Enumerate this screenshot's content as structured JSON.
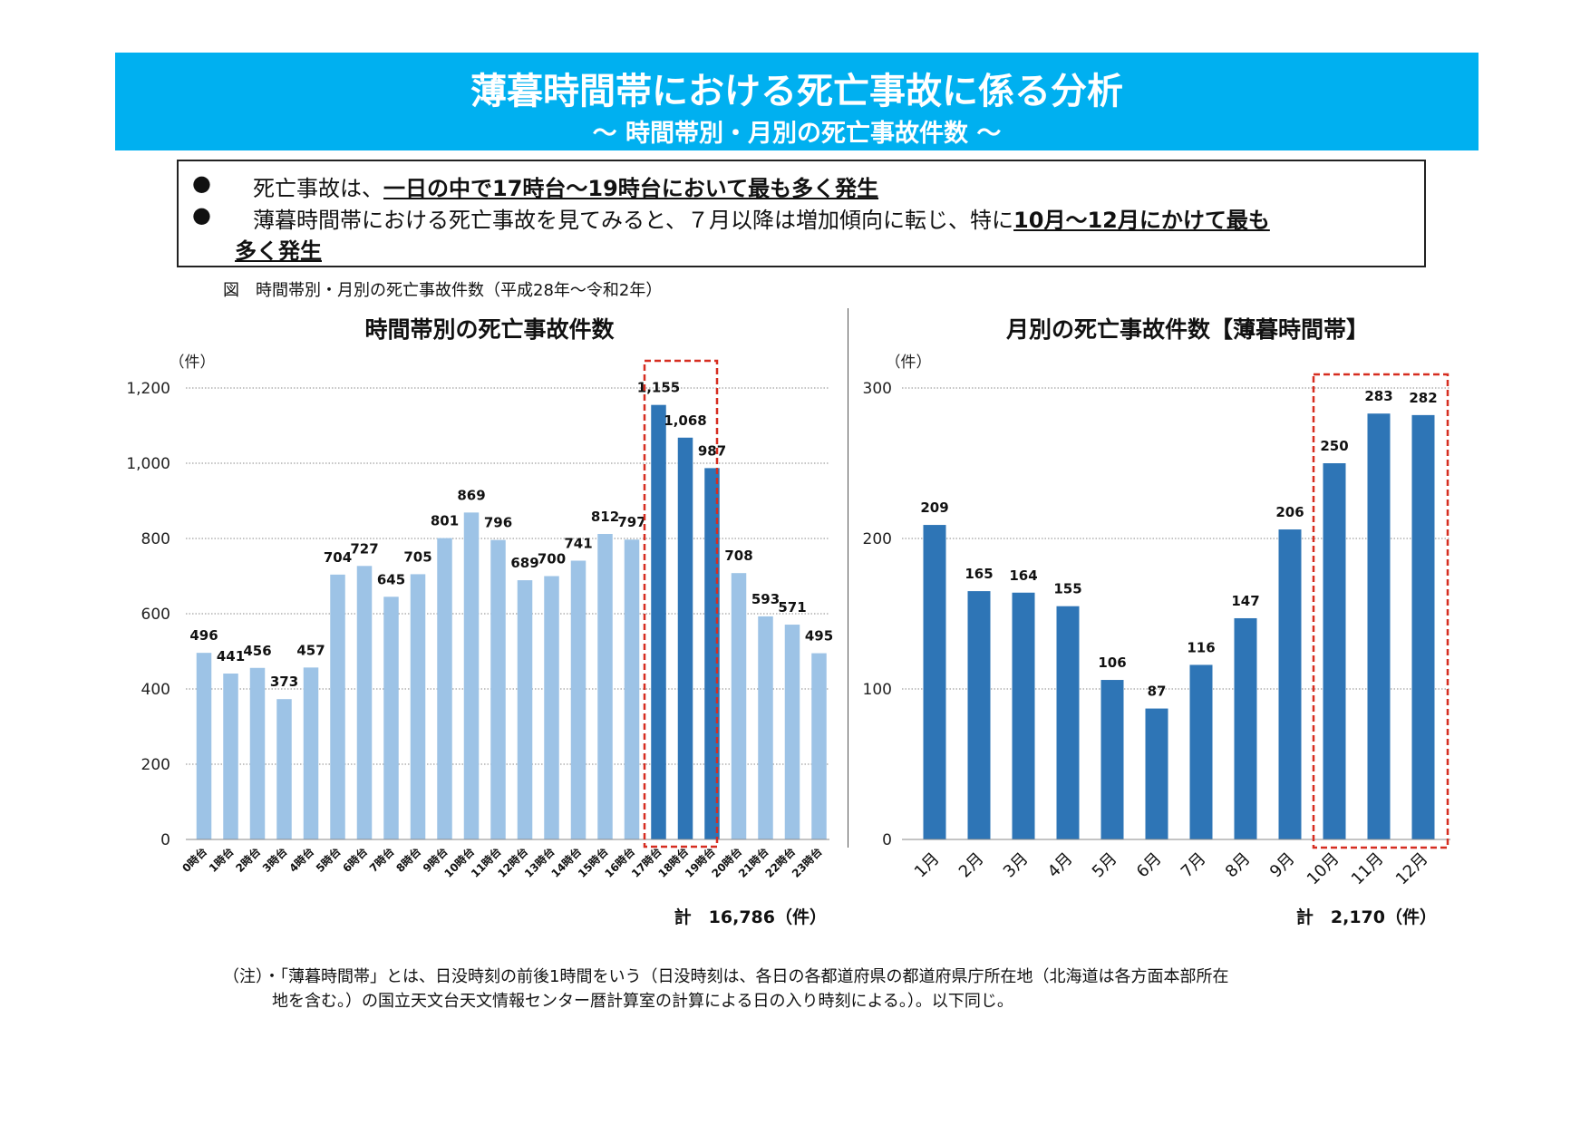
{
  "header": {
    "title": "薄暮時間帯における死亡事故に係る分析",
    "subtitle": "～ 時間帯別・月別の死亡事故件数 ～"
  },
  "summary": {
    "bullet_symbol": "●",
    "line1_pre": "死亡事故は、",
    "line1_em": "一日の中で17時台～19時台において最も多く発生",
    "line2_pre": "薄暮時間帯における死亡事故を見てみると、７月以降は増加傾向に転じ、特に",
    "line2_em": "10月～12月にかけて最も",
    "line3_em": "多く発生"
  },
  "figure_caption": "図　時間帯別・月別の死亡事故件数（平成28年～令和2年）",
  "note": {
    "line1": "（注）・「薄暮時間帯」とは、日没時刻の前後1時間をいう（日没時刻は、各日の各都道府県の都道府県庁所在地（北海道は各方面本部所在",
    "line2": "地を含む。）の国立天文台天文情報センター暦計算室の計算による日の入り時刻による。）。以下同じ。"
  },
  "colors": {
    "banner": "#00b0f0",
    "light_bar": "#9dc3e6",
    "dark_bar": "#2e75b6",
    "highlight_box": "#d62d20"
  },
  "chart_data": [
    {
      "type": "bar",
      "title": "時間帯別の死亡事故件数",
      "ylabel": "（件）",
      "ylim": [
        0,
        1200
      ],
      "yticks": [
        0,
        200,
        400,
        600,
        800,
        1000,
        1200
      ],
      "ytick_labels": [
        "0",
        "200",
        "400",
        "600",
        "800",
        "1,000",
        "1,200"
      ],
      "categories": [
        "0時台",
        "1時台",
        "2時台",
        "3時台",
        "4時台",
        "5時台",
        "6時台",
        "7時台",
        "8時台",
        "9時台",
        "10時台",
        "11時台",
        "12時台",
        "13時台",
        "14時台",
        "15時台",
        "16時台",
        "17時台",
        "18時台",
        "19時台",
        "20時台",
        "21時台",
        "22時台",
        "23時台"
      ],
      "values": [
        496,
        441,
        456,
        373,
        457,
        704,
        727,
        645,
        705,
        801,
        869,
        796,
        689,
        700,
        741,
        812,
        797,
        1155,
        1068,
        987,
        708,
        593,
        571,
        495
      ],
      "value_labels": [
        "496",
        "441",
        "456",
        "373",
        "457",
        "704",
        "727",
        "645",
        "705",
        "801",
        "869",
        "796",
        "689",
        "700",
        "741",
        "812",
        "797",
        "1,155",
        "1,068",
        "987",
        "708",
        "593",
        "571",
        "495"
      ],
      "highlight": [
        17,
        18,
        19
      ],
      "grid": true,
      "total_label": "計　16,786（件）"
    },
    {
      "type": "bar",
      "title": "月別の死亡事故件数【薄暮時間帯】",
      "ylabel": "（件）",
      "ylim": [
        0,
        300
      ],
      "yticks": [
        0,
        100,
        200,
        300
      ],
      "ytick_labels": [
        "0",
        "100",
        "200",
        "300"
      ],
      "categories": [
        "1月",
        "2月",
        "3月",
        "4月",
        "5月",
        "6月",
        "7月",
        "8月",
        "9月",
        "10月",
        "11月",
        "12月"
      ],
      "values": [
        209,
        165,
        164,
        155,
        106,
        87,
        116,
        147,
        206,
        250,
        283,
        282
      ],
      "value_labels": [
        "209",
        "165",
        "164",
        "155",
        "106",
        "87",
        "116",
        "147",
        "206",
        "250",
        "283",
        "282"
      ],
      "highlight": [
        9,
        10,
        11
      ],
      "grid": true,
      "total_label": "計　2,170（件）"
    }
  ]
}
